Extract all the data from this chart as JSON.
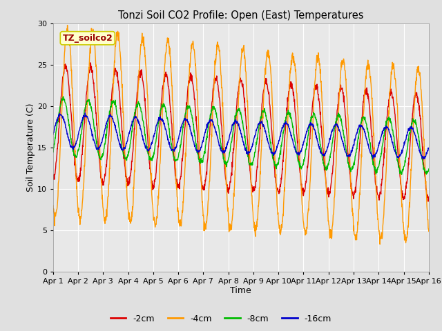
{
  "title": "Tonzi Soil CO2 Profile: Open (East) Temperatures",
  "xlabel": "Time",
  "ylabel": "Soil Temperature (C)",
  "label_text": "TZ_soilco2",
  "ylim": [
    0,
    30
  ],
  "xlim_days": 15,
  "xtick_labels": [
    "Apr 1",
    "Apr 2",
    "Apr 3",
    "Apr 4",
    "Apr 5",
    "Apr 6",
    "Apr 7",
    "Apr 8",
    "Apr 9",
    "Apr 10",
    "Apr 11",
    "Apr 12",
    "Apr 13",
    "Apr 14",
    "Apr 15",
    "Apr 16"
  ],
  "legend_labels": [
    "-2cm",
    "-4cm",
    "-8cm",
    "-16cm"
  ],
  "line_colors": [
    "#dd0000",
    "#ff9900",
    "#00bb00",
    "#0000cc"
  ],
  "bg_color": "#e0e0e0",
  "plot_bg": "#e8e8e8",
  "grid_color": "#ffffff",
  "annotation_bg": "#ffffcc",
  "annotation_border": "#cccc00",
  "annotation_text_color": "#990000",
  "n_points": 1440,
  "depths": {
    "2cm": {
      "base": 18.0,
      "amp_day": 7.0,
      "trend": -3.0,
      "phase": 0.0
    },
    "4cm": {
      "base": 18.0,
      "amp_day": 11.5,
      "trend": -4.0,
      "phase": -0.5
    },
    "8cm": {
      "base": 17.5,
      "amp_day": 3.5,
      "trend": -2.5,
      "phase": 0.6
    },
    "16cm": {
      "base": 17.0,
      "amp_day": 2.0,
      "trend": -1.5,
      "phase": 1.3
    }
  }
}
